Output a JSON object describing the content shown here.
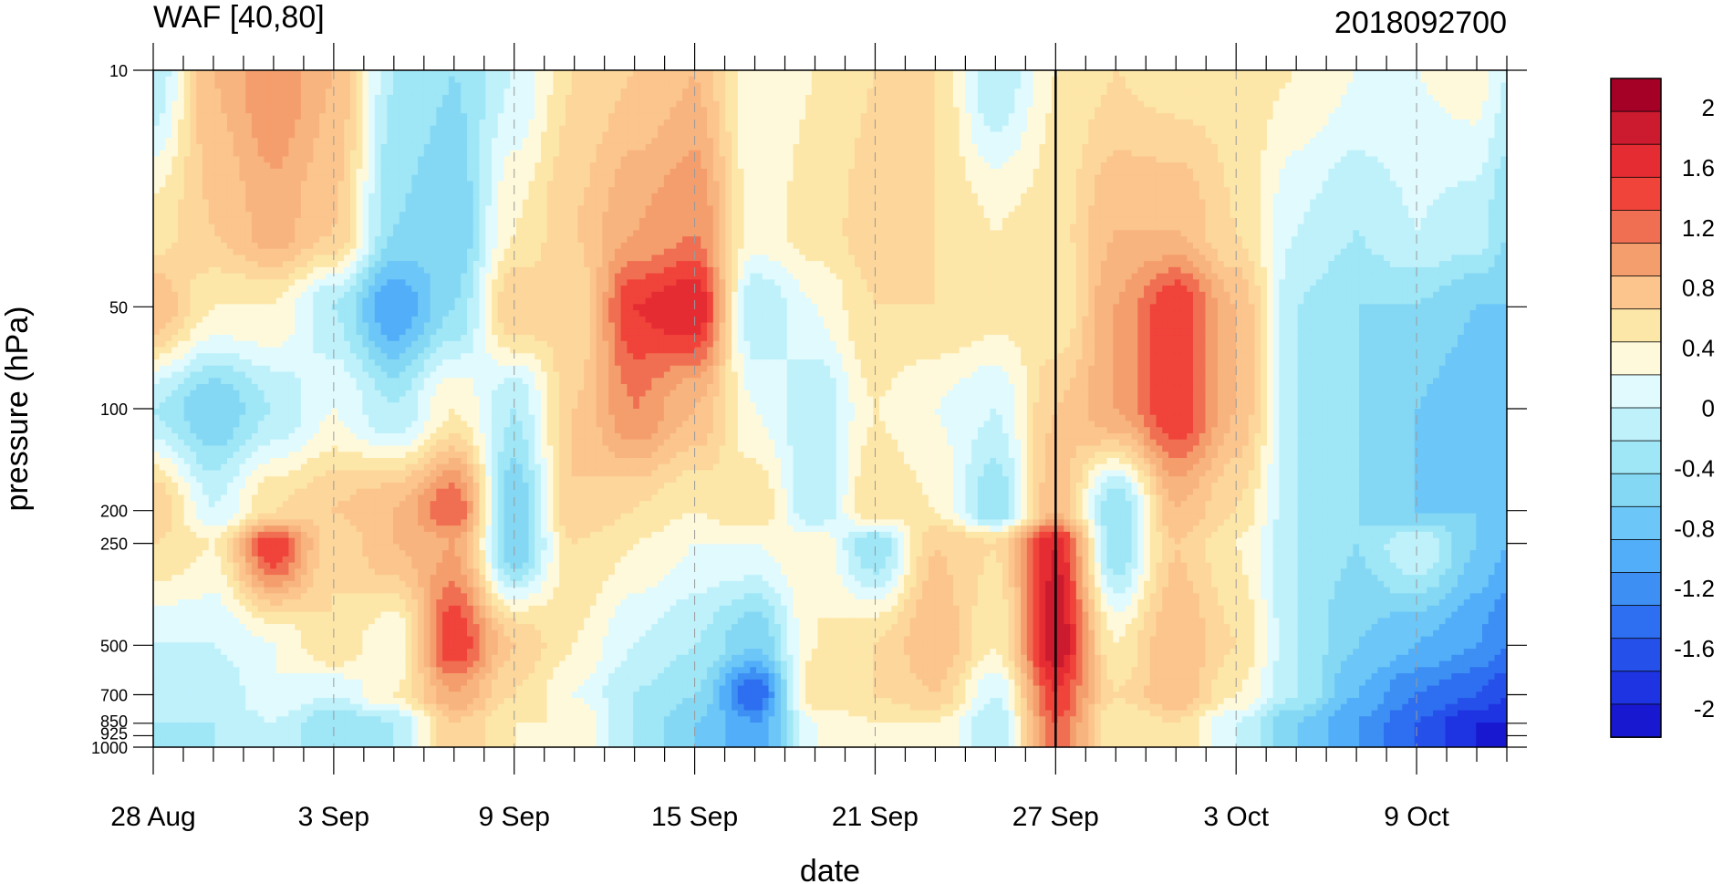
{
  "title_left": "WAF [40,80]",
  "title_right": "2018092700",
  "chart_data": {
    "type": "heatmap",
    "subtype": "filled-contour",
    "xlabel": "date",
    "ylabel": "pressure (hPa)",
    "x_ticks": [
      {
        "label": "28 Aug",
        "day": 0
      },
      {
        "label": "3 Sep",
        "day": 6
      },
      {
        "label": "9 Sep",
        "day": 12
      },
      {
        "label": "15 Sep",
        "day": 18
      },
      {
        "label": "21 Sep",
        "day": 24
      },
      {
        "label": "27 Sep",
        "day": 30
      },
      {
        "label": "3 Oct",
        "day": 36
      },
      {
        "label": "9 Oct",
        "day": 42
      }
    ],
    "x_range_days": [
      0,
      45
    ],
    "y_ticks": [
      {
        "label": "10",
        "p": 10
      },
      {
        "label": "50",
        "p": 50
      },
      {
        "label": "100",
        "p": 100
      },
      {
        "label": "200",
        "p": 200
      },
      {
        "label": "250",
        "p": 250
      },
      {
        "label": "500",
        "p": 500
      },
      {
        "label": "700",
        "p": 700
      },
      {
        "label": "850",
        "p": 850
      },
      {
        "label": "925",
        "p": 925
      },
      {
        "label": "1000",
        "p": 1000
      }
    ],
    "y_scale": "log-pressure (reversed)",
    "colorbar": {
      "labels": [
        "2",
        "1.6",
        "1.2",
        "0.8",
        "0.4",
        "0",
        "-0.4",
        "-0.8",
        "-1.2",
        "-1.6",
        "-2"
      ],
      "colors": [
        "#a50026",
        "#cc1a2e",
        "#e52c33",
        "#f0433a",
        "#f06f52",
        "#f59e6d",
        "#fbc58d",
        "#fde7a8",
        "#fff9dc",
        "#e0fafe",
        "#bff1fb",
        "#9fe6f6",
        "#85d8f4",
        "#6cc6f7",
        "#52aef9",
        "#3d8ff4",
        "#2e6ef0",
        "#2650ea",
        "#1e34e2",
        "#1818d0"
      ],
      "levels": [
        2.2,
        2.0,
        1.8,
        1.6,
        1.4,
        1.2,
        1.0,
        0.8,
        0.4,
        0.0,
        -0.4,
        -0.6,
        -0.8,
        -1.0,
        -1.2,
        -1.4,
        -1.6,
        -1.8,
        -2.0,
        -2.2
      ]
    },
    "vertical_marker_day": 30,
    "grid": "dashed vertical lines at labeled dates",
    "field": {
      "note": "WAF values at reference pressure levels (hPa) sampled per day; interpolated for rendering",
      "levels_hPa": [
        10,
        30,
        50,
        100,
        200,
        250,
        500,
        700,
        850,
        1000
      ],
      "days": [
        0,
        2,
        4,
        6,
        8,
        10,
        12,
        14,
        16,
        18,
        20,
        22,
        24,
        26,
        28,
        30,
        32,
        34,
        36,
        38,
        40,
        42,
        44,
        45
      ],
      "values": [
        [
          -0.4,
          0.8,
          1.2,
          0.8,
          -0.4,
          -0.6,
          -0.2,
          0.4,
          0.6,
          0.8,
          0.0,
          0.2,
          0.4,
          0.4,
          -0.4,
          0.2,
          0.4,
          0.3,
          0.3,
          0.2,
          0.0,
          0.0,
          0.1,
          -0.2
        ],
        [
          0.3,
          0.6,
          0.9,
          0.6,
          -0.6,
          -0.8,
          0.2,
          0.6,
          1.0,
          1.2,
          0.1,
          0.3,
          0.5,
          0.4,
          0.2,
          0.3,
          0.8,
          0.8,
          0.4,
          -0.2,
          -0.4,
          -0.2,
          -0.3,
          -0.6
        ],
        [
          0.8,
          0.2,
          0.2,
          -0.4,
          -1.2,
          -0.6,
          0.6,
          0.4,
          1.6,
          1.8,
          -0.4,
          0.0,
          0.4,
          0.4,
          0.3,
          0.2,
          1.0,
          1.6,
          0.8,
          -0.4,
          -0.6,
          -0.6,
          -0.8,
          -0.8
        ],
        [
          -0.4,
          -0.8,
          -0.4,
          0.0,
          -0.4,
          0.2,
          -0.4,
          0.6,
          1.2,
          0.8,
          0.0,
          -0.4,
          0.2,
          0.0,
          -0.2,
          0.6,
          1.0,
          1.6,
          0.8,
          -0.4,
          -0.6,
          -0.8,
          -1.0,
          -1.0
        ],
        [
          0.6,
          -0.2,
          0.4,
          0.6,
          0.8,
          1.4,
          -0.8,
          0.6,
          0.4,
          0.2,
          0.4,
          -0.4,
          0.4,
          0.2,
          -0.6,
          0.8,
          -0.6,
          0.8,
          0.4,
          -0.4,
          -0.6,
          -0.8,
          -0.8,
          -1.0
        ],
        [
          0.4,
          0.2,
          1.6,
          0.4,
          0.8,
          1.0,
          -0.8,
          0.4,
          0.2,
          0.0,
          0.0,
          0.2,
          -0.6,
          0.6,
          0.4,
          1.8,
          -0.6,
          0.6,
          0.2,
          -0.4,
          -0.6,
          -0.2,
          -0.8,
          -1.0
        ],
        [
          -0.2,
          -0.2,
          0.0,
          0.4,
          0.0,
          1.6,
          0.6,
          0.2,
          -0.2,
          -0.4,
          -0.8,
          0.2,
          0.4,
          0.8,
          0.2,
          2.0,
          0.2,
          0.8,
          0.4,
          -0.4,
          -0.8,
          -1.0,
          -1.2,
          -1.4
        ],
        [
          -0.2,
          -0.4,
          0.0,
          -0.2,
          0.2,
          1.0,
          0.4,
          0.0,
          -0.4,
          -0.6,
          -1.6,
          0.4,
          0.4,
          0.6,
          -0.2,
          1.6,
          0.4,
          0.8,
          0.2,
          -0.4,
          -1.0,
          -1.4,
          -1.6,
          -1.8
        ],
        [
          -0.4,
          -0.4,
          -0.2,
          -0.6,
          -0.4,
          0.6,
          0.2,
          0.2,
          -0.4,
          -0.8,
          -1.2,
          0.0,
          0.2,
          0.2,
          -0.4,
          1.4,
          0.2,
          0.4,
          -0.2,
          -0.8,
          -1.2,
          -1.6,
          -2.0,
          -2.0
        ],
        [
          -0.4,
          -0.4,
          -0.2,
          -0.6,
          -0.4,
          0.6,
          0.2,
          0.2,
          -0.4,
          -0.8,
          -1.2,
          0.0,
          0.2,
          0.2,
          -0.4,
          1.4,
          0.2,
          0.4,
          -0.2,
          -0.8,
          -1.2,
          -1.6,
          -2.0,
          -2.0
        ]
      ]
    }
  }
}
